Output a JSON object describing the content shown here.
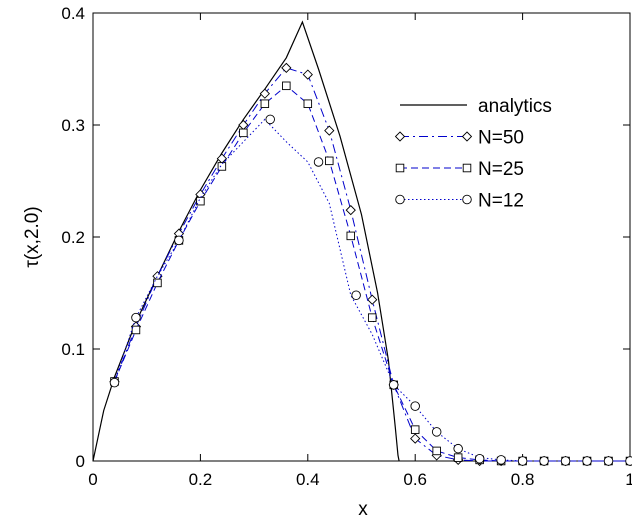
{
  "chart_data": {
    "type": "line",
    "xlabel": "x",
    "ylabel": "τ(x,2.0)",
    "xlim": [
      0,
      1
    ],
    "ylim": [
      0,
      0.4
    ],
    "xticks": [
      0,
      0.2,
      0.4,
      0.6,
      0.8,
      1
    ],
    "xtick_labels": [
      "0",
      "0.2",
      "0.4",
      "0.6",
      "0.8",
      "1"
    ],
    "yticks": [
      0,
      0.1,
      0.2,
      0.3,
      0.4
    ],
    "ytick_labels": [
      "0",
      "0.1",
      "0.2",
      "0.3",
      "0.4"
    ],
    "grid": false,
    "legend_position": "top-right",
    "series": [
      {
        "name": "analytics",
        "style": "solid",
        "marker": "none",
        "color": "#000000",
        "x": [
          0.0,
          0.02,
          0.04,
          0.08,
          0.12,
          0.16,
          0.2,
          0.24,
          0.28,
          0.32,
          0.36,
          0.39,
          0.42,
          0.46,
          0.5,
          0.53,
          0.55,
          0.563,
          0.568,
          0.57
        ],
        "y": [
          0.0,
          0.045,
          0.075,
          0.124,
          0.165,
          0.205,
          0.242,
          0.275,
          0.305,
          0.332,
          0.36,
          0.392,
          0.35,
          0.29,
          0.22,
          0.15,
          0.09,
          0.03,
          0.005,
          0.0
        ]
      },
      {
        "name": "N=50",
        "style": "dashdot",
        "marker": "diamond",
        "color": "#0000cc",
        "x": [
          0.04,
          0.08,
          0.12,
          0.16,
          0.2,
          0.24,
          0.28,
          0.32,
          0.36,
          0.4,
          0.44,
          0.48,
          0.52,
          0.56,
          0.6,
          0.64,
          0.68,
          0.72,
          0.76,
          0.8,
          0.84,
          0.88,
          0.92,
          0.96,
          1.0
        ],
        "y": [
          0.071,
          0.12,
          0.165,
          0.203,
          0.238,
          0.27,
          0.3,
          0.328,
          0.351,
          0.345,
          0.295,
          0.224,
          0.144,
          0.068,
          0.02,
          0.005,
          0.001,
          0.0,
          0.0,
          0.0,
          0.0,
          0.0,
          0.0,
          0.0,
          0.0
        ]
      },
      {
        "name": "N=25",
        "style": "dashed",
        "marker": "square",
        "color": "#0000cc",
        "x": [
          0.04,
          0.08,
          0.12,
          0.16,
          0.2,
          0.24,
          0.28,
          0.32,
          0.36,
          0.4,
          0.44,
          0.48,
          0.52,
          0.56,
          0.6,
          0.64,
          0.68,
          0.72,
          0.76,
          0.8,
          0.84,
          0.88,
          0.92,
          0.96,
          1.0
        ],
        "y": [
          0.071,
          0.117,
          0.159,
          0.197,
          0.232,
          0.263,
          0.293,
          0.319,
          0.335,
          0.319,
          0.268,
          0.201,
          0.128,
          0.068,
          0.028,
          0.009,
          0.003,
          0.001,
          0.0,
          0.0,
          0.0,
          0.0,
          0.0,
          0.0,
          0.0
        ]
      },
      {
        "name": "N=12",
        "style": "dotted",
        "marker": "circle",
        "color": "#0000cc",
        "x": [
          0.04,
          0.08,
          0.12,
          0.16,
          0.2,
          0.24,
          0.28,
          0.32,
          0.36,
          0.4,
          0.44,
          0.48,
          0.52,
          0.56,
          0.6,
          0.64,
          0.68,
          0.72,
          0.76,
          0.8,
          0.84,
          0.88,
          0.92,
          0.96,
          1.0
        ],
        "y": [
          0.071,
          0.128,
          0.165,
          0.197,
          0.235,
          0.265,
          0.285,
          0.305,
          0.285,
          0.267,
          0.23,
          0.148,
          0.113,
          0.068,
          0.049,
          0.026,
          0.011,
          0.003,
          0.001,
          0.0,
          0.0,
          0.0,
          0.0,
          0.0,
          0.0
        ],
        "marker_x": [
          0.04,
          0.08,
          0.16,
          0.33,
          0.42,
          0.49,
          0.56,
          0.6,
          0.64,
          0.68,
          0.72,
          0.76,
          0.8,
          0.84,
          0.88,
          0.92,
          0.96,
          1.0
        ],
        "marker_y": [
          0.07,
          0.128,
          0.197,
          0.305,
          0.267,
          0.148,
          0.068,
          0.049,
          0.026,
          0.011,
          0.002,
          0.001,
          0.0,
          0.0,
          0.0,
          0.0,
          0.0,
          0.0
        ]
      }
    ]
  }
}
